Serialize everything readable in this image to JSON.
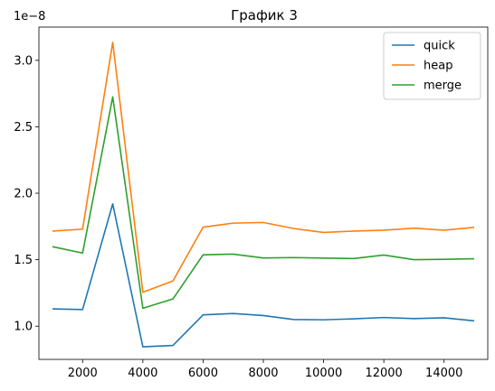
{
  "chart_data": {
    "type": "line",
    "title": "График 3",
    "xlabel": "",
    "ylabel": "",
    "y_offset_label": "1e−8",
    "xlim": [
      550,
      15450
    ],
    "ylim": [
      0.75,
      3.25
    ],
    "x_ticks": [
      2000,
      4000,
      6000,
      8000,
      10000,
      12000,
      14000
    ],
    "x_tick_labels": [
      "2000",
      "4000",
      "6000",
      "8000",
      "10000",
      "12000",
      "14000"
    ],
    "y_ticks": [
      1.0,
      1.5,
      2.0,
      2.5,
      3.0
    ],
    "y_tick_labels": [
      "1.0",
      "1.5",
      "2.0",
      "2.5",
      "3.0"
    ],
    "grid": false,
    "legend_position": "top-right",
    "x": [
      1000,
      2000,
      3000,
      4000,
      5000,
      6000,
      7000,
      8000,
      9000,
      10000,
      11000,
      12000,
      13000,
      14000,
      15000
    ],
    "series": [
      {
        "name": "quick",
        "color": "#1f77b4",
        "values": [
          1.13,
          1.125,
          1.92,
          0.845,
          0.855,
          1.085,
          1.095,
          1.08,
          1.05,
          1.048,
          1.055,
          1.065,
          1.057,
          1.063,
          1.04
        ]
      },
      {
        "name": "heap",
        "color": "#ff7f0e",
        "values": [
          1.715,
          1.73,
          3.135,
          1.255,
          1.34,
          1.745,
          1.775,
          1.78,
          1.735,
          1.705,
          1.715,
          1.722,
          1.737,
          1.722,
          1.743
        ]
      },
      {
        "name": "merge",
        "color": "#2ca02c",
        "values": [
          1.598,
          1.55,
          2.725,
          1.135,
          1.205,
          1.537,
          1.542,
          1.513,
          1.516,
          1.512,
          1.509,
          1.535,
          1.5,
          1.503,
          1.507
        ]
      }
    ]
  }
}
